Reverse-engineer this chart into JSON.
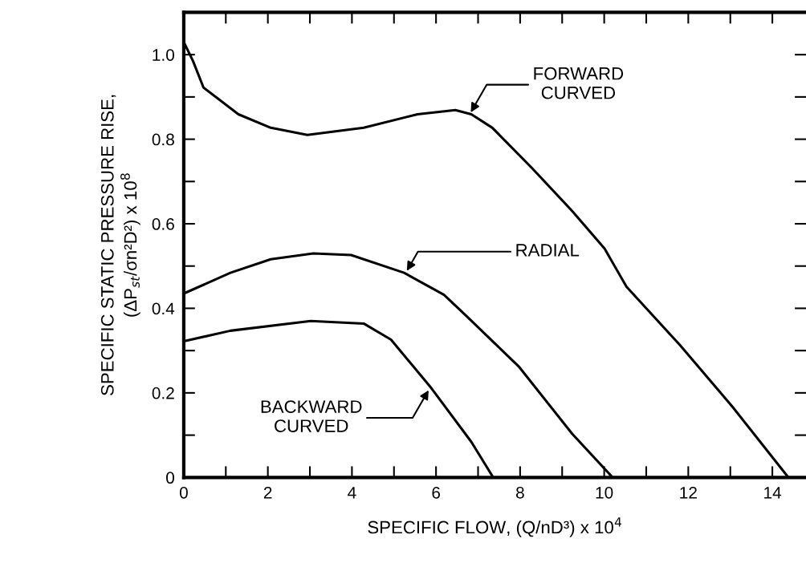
{
  "chart_data": {
    "type": "line",
    "xlabel": "SPECIFIC FLOW, (Q/nD³) x 10$^{4}$",
    "ylabel": "SPECIFIC STATIC PRESSURE RISE,\n(ΔP$_{st}$/σn²D²) x 10$^{8}$",
    "series": [
      {
        "color": "#000000",
        "x": [
          0,
          0.22,
          0.47,
          1.3,
          2.07,
          2.94,
          4.28,
          5.56,
          6.46,
          6.84,
          7.34,
          8.29,
          9.24,
          10.01,
          10.53,
          11.81,
          13.06,
          14.38
        ],
        "values": [
          1.03,
          0.985,
          0.922,
          0.859,
          0.827,
          0.81,
          0.827,
          0.859,
          0.869,
          0.859,
          0.827,
          0.731,
          0.63,
          0.541,
          0.451,
          0.312,
          0.166,
          0
        ]
      },
      {
        "color": "#000000",
        "x": [
          0,
          1.11,
          2.07,
          3.08,
          3.98,
          5.24,
          6.19,
          6.71,
          7.98,
          9.24,
          10.2
        ],
        "values": [
          0.435,
          0.484,
          0.516,
          0.53,
          0.526,
          0.484,
          0.432,
          0.383,
          0.261,
          0.103,
          0
        ]
      },
      {
        "color": "#000000",
        "x": [
          0,
          1.11,
          3.02,
          4.28,
          4.93,
          5.89,
          6.84,
          7.36
        ],
        "values": [
          0.322,
          0.347,
          0.37,
          0.364,
          0.326,
          0.211,
          0.084,
          0
        ]
      }
    ],
    "annotations": [
      {
        "text": "FORWARD\nCURVED",
        "x": 6.8,
        "y": 0.859
      },
      {
        "text": "RADIAL",
        "x": 5.28,
        "y": 0.484
      },
      {
        "text": "BACKWARD\nCURVED",
        "x": 5.85,
        "y": 0.211
      }
    ],
    "xlim": [
      0,
      14.8
    ],
    "ylim": [
      0,
      1.1
    ],
    "xticks": [
      0,
      {
        "value": 1,
        "label": null
      },
      2,
      {
        "value": 3,
        "label": null
      },
      4,
      {
        "value": 5,
        "label": null
      },
      6,
      {
        "value": 7,
        "label": null
      },
      8,
      {
        "value": 9,
        "label": null
      },
      10,
      {
        "value": 11,
        "label": null
      },
      12,
      {
        "value": 13,
        "label": null
      },
      14
    ],
    "yticks": [
      0,
      {
        "value": 0.1,
        "label": null
      },
      0.2,
      {
        "value": 0.3,
        "label": null
      },
      0.4,
      {
        "value": 0.5,
        "label": null
      },
      0.6,
      {
        "value": 0.7,
        "label": null
      },
      0.8,
      {
        "value": 0.9,
        "label": null
      },
      {
        "value": 1.0,
        "label": "1.0"
      }
    ],
    "grid": false,
    "legend": false,
    "marker": "none",
    "line_style": "solid"
  }
}
